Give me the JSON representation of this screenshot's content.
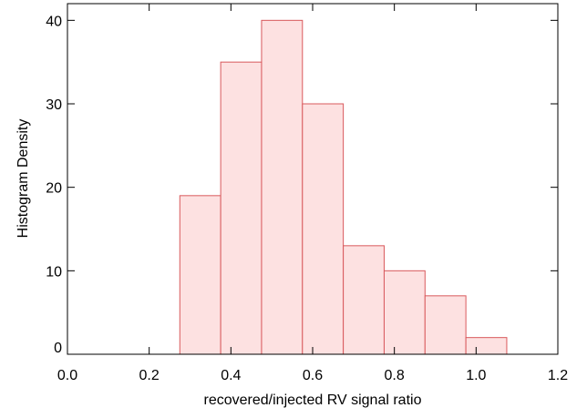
{
  "chart_data": {
    "type": "histogram",
    "xlabel": "recovered/injected RV signal ratio",
    "ylabel": "Histogram Density",
    "bins": [
      0.275,
      0.375,
      0.475,
      0.575,
      0.675,
      0.775,
      0.875,
      0.975,
      1.075
    ],
    "values": [
      19,
      35,
      40,
      30,
      13,
      10,
      7,
      2
    ],
    "color": "#fde1e1",
    "edgecolor": "#d9595c",
    "xlim": [
      0,
      1.2
    ],
    "xticks": [
      {
        "value": 0,
        "label": "0.0"
      },
      0.2,
      0.4,
      0.6,
      0.8,
      {
        "value": 1,
        "label": "1.0"
      },
      1.2
    ],
    "ylim": [
      0,
      42
    ],
    "yticks": [
      0,
      10,
      20,
      30,
      40
    ]
  }
}
